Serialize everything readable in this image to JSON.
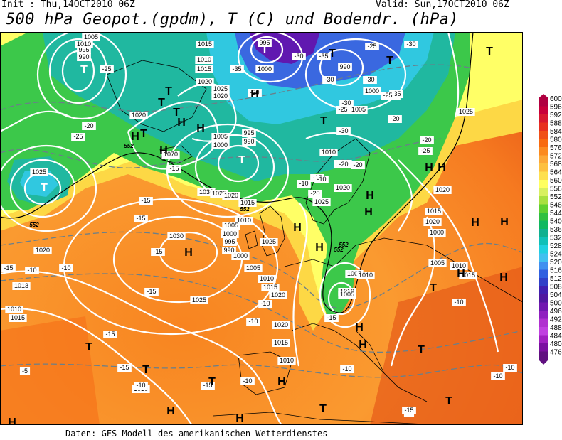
{
  "header": {
    "init": "Init : Thu,14OCT2010 06Z",
    "valid": "Valid: Sun,17OCT2010 06Z",
    "title": "500 hPa Geopot.(gpdm), T (C) und Bodendr. (hPa)"
  },
  "footer": "Daten: GFS-Modell des amerikanischen Wetterdienstes",
  "legend": {
    "values": [
      "600",
      "596",
      "592",
      "588",
      "584",
      "580",
      "576",
      "572",
      "568",
      "564",
      "560",
      "556",
      "552",
      "548",
      "544",
      "540",
      "536",
      "532",
      "528",
      "524",
      "520",
      "516",
      "512",
      "508",
      "504",
      "500",
      "496",
      "492",
      "488",
      "484",
      "480",
      "476"
    ],
    "colors": [
      "#b00040",
      "#c8003a",
      "#d81830",
      "#e83020",
      "#f05018",
      "#f86a10",
      "#fb8a20",
      "#fca838",
      "#fdc040",
      "#fee050",
      "#ffff60",
      "#d8f060",
      "#a8e040",
      "#60d030",
      "#30c040",
      "#10b860",
      "#10b090",
      "#10c0b8",
      "#20d0e0",
      "#40c0f0",
      "#4090f0",
      "#3060e0",
      "#3040c8",
      "#4020b0",
      "#5018a0",
      "#7018b0",
      "#9020c0",
      "#b030d0",
      "#c040e0",
      "#a020c0",
      "#7a10a0",
      "#601080"
    ]
  },
  "pressure_labels": [
    "1005",
    "1000",
    "995",
    "990",
    "1015",
    "1010",
    "1015",
    "1020",
    "1025",
    "1020",
    "1005",
    "1000",
    "995",
    "990",
    "1020",
    "1070",
    "995",
    "1000",
    "990",
    "1000",
    "1005",
    "1010",
    "1015",
    "1020",
    "1025",
    "1030",
    "1025",
    "1020",
    "1015",
    "1010",
    "1005",
    "1000",
    "995",
    "990",
    "1000",
    "1005",
    "1010",
    "1015",
    "1020",
    "1025",
    "1030",
    "1025",
    "1020",
    "1015",
    "1010",
    "1005",
    "1010",
    "1015",
    "1020",
    "1000",
    "1005",
    "1010",
    "1015",
    "1020",
    "1025",
    "1010",
    "1005",
    "1010",
    "1013",
    "1015",
    "1020",
    "1025",
    "1010",
    "1005",
    "1010"
  ],
  "temp_labels": [
    "-25",
    "-20",
    "-25",
    "-30",
    "-35",
    "-30",
    "-35",
    "-30",
    "-25",
    "-30",
    "-30",
    "-25",
    "-30",
    "-35",
    "-25",
    "-30",
    "-20",
    "-25",
    "-20",
    "-15",
    "-15",
    "-15",
    "-15",
    "-15",
    "-10",
    "-15",
    "-10",
    "-15",
    "-10",
    "-15",
    "-15",
    "-10",
    "-10",
    "-10",
    "-10",
    "-15",
    "-5",
    "-10",
    "-10",
    "-5",
    "-10",
    "-15",
    "-20",
    "-25",
    "-20",
    "-20",
    "-20",
    "-15",
    "-10",
    "-10"
  ],
  "highs": [
    "H",
    "H",
    "H",
    "H",
    "H",
    "H",
    "H",
    "H",
    "H",
    "H",
    "H",
    "H",
    "H",
    "H",
    "H",
    "H",
    "H",
    "H",
    "H",
    "H",
    "H",
    "H",
    "H"
  ],
  "lows": [
    "T",
    "T",
    "T",
    "T",
    "T",
    "T",
    "T",
    "T",
    "T",
    "T",
    "T",
    "T",
    "T",
    "T",
    "T",
    "T",
    "T",
    "T",
    "T"
  ],
  "geopot_labels": [
    "552",
    "552",
    "552",
    "552",
    "552"
  ]
}
